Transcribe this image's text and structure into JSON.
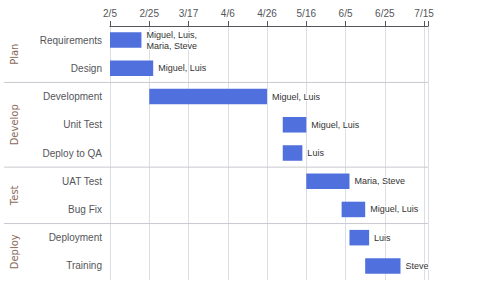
{
  "chart_data": {
    "type": "gantt",
    "orientation": "horizontal",
    "categories": [
      "Requirements",
      "Design",
      "Development",
      "Unit Test",
      "Deploy to QA",
      "UAT Test",
      "Bug Fix",
      "Deployment",
      "Training"
    ],
    "start": [
      0,
      0,
      20,
      88,
      88,
      100,
      118,
      122,
      130
    ],
    "duration": [
      16,
      22,
      60,
      12,
      10,
      22,
      12,
      10,
      18
    ],
    "annotations": [
      "Miguel, Luis,\nMaria, Steve",
      "Miguel, Luis",
      "Miguel, Luis",
      "Miguel, Luis",
      "Luis",
      "Maria, Steve",
      "Miguel, Luis",
      "Luis",
      "Steve"
    ],
    "groups": [
      {
        "name": "Plan",
        "categories": [
          "Requirements",
          "Design"
        ]
      },
      {
        "name": "Develop",
        "categories": [
          "Development",
          "Unit Test",
          "Deploy to QA"
        ]
      },
      {
        "name": "Test",
        "categories": [
          "UAT Test",
          "Bug Fix"
        ]
      },
      {
        "name": "Deploy",
        "categories": [
          "Deployment",
          "Training"
        ]
      }
    ],
    "xlim": [
      0,
      162
    ],
    "xticks": [
      {
        "value": 0,
        "label": "2/5"
      },
      {
        "value": 20,
        "label": "2/25"
      },
      {
        "value": 40,
        "label": "3/17"
      },
      {
        "value": 60,
        "label": "4/6"
      },
      {
        "value": 80,
        "label": "4/26"
      },
      {
        "value": 100,
        "label": "5/16"
      },
      {
        "value": 120,
        "label": "6/5"
      },
      {
        "value": 140,
        "label": "6/25"
      },
      {
        "value": 160,
        "label": "7/15"
      }
    ],
    "grid": true
  }
}
